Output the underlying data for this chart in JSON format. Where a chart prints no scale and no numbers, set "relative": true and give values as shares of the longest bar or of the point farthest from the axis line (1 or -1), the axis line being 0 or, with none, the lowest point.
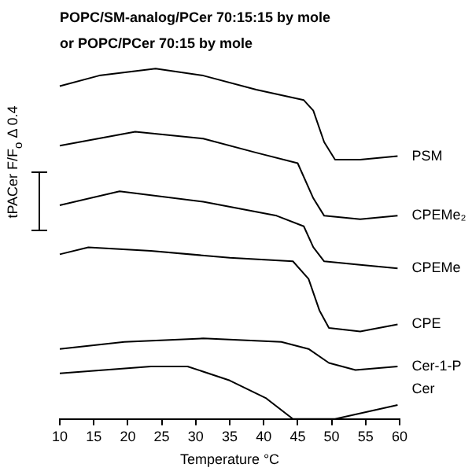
{
  "chart_data": {
    "type": "line",
    "title": "POPC/SM-analog/PCer 70:15:15 by mole",
    "subtitle": "or POPC/PCer 70:15 by mole",
    "xlabel": "Temperature °C",
    "ylabel": "tPACer F/F$_{o}$ Δ 0.4",
    "relative": true,
    "marker": "none",
    "line_style": "solid",
    "xlim": [
      10,
      60
    ],
    "xticks": [
      10,
      15,
      20,
      25,
      30,
      35,
      40,
      45,
      50,
      55,
      60
    ],
    "series": [
      {
        "name": "PSM",
        "color": "#000000",
        "x": [
          10,
          15.8,
          24.1,
          31.1,
          38.9,
          45.9,
          47.3,
          48.9,
          50.5,
          54.2,
          59.7
        ],
        "values": [
          0.95,
          0.98,
          1.0,
          0.98,
          0.94,
          0.91,
          0.88,
          0.79,
          0.74,
          0.74,
          0.75
        ]
      },
      {
        "name": "CPEMe₂",
        "color": "#000000",
        "x": [
          10,
          21.1,
          31.1,
          38.9,
          45,
          47.3,
          48.9,
          54.2,
          59.7
        ],
        "values": [
          0.78,
          0.82,
          0.8,
          0.76,
          0.73,
          0.63,
          0.58,
          0.57,
          0.58
        ]
      },
      {
        "name": "CPEMe",
        "color": "#000000",
        "x": [
          10,
          18.8,
          31.1,
          41.9,
          45.9,
          47.3,
          48.9,
          54.2,
          59.7
        ],
        "values": [
          0.61,
          0.65,
          0.62,
          0.58,
          0.55,
          0.49,
          0.45,
          0.44,
          0.43
        ]
      },
      {
        "name": "CPE",
        "color": "#000000",
        "x": [
          10,
          14.2,
          23.4,
          35,
          44.3,
          46.6,
          48.2,
          49.6,
          54.2,
          59.7
        ],
        "values": [
          0.47,
          0.49,
          0.48,
          0.46,
          0.45,
          0.4,
          0.31,
          0.26,
          0.25,
          0.27
        ]
      },
      {
        "name": "Cer-1-P",
        "color": "#000000",
        "x": [
          10,
          19.5,
          31.1,
          42.6,
          46.6,
          49.6,
          53.5,
          59.7
        ],
        "values": [
          0.2,
          0.22,
          0.23,
          0.22,
          0.2,
          0.16,
          0.14,
          0.15
        ]
      },
      {
        "name": "Cer",
        "color": "#000000",
        "x": [
          10,
          23.4,
          28.8,
          35,
          40.3,
          44.3,
          50.5,
          59.7
        ],
        "values": [
          0.13,
          0.15,
          0.15,
          0.11,
          0.06,
          0,
          0,
          0.04
        ]
      }
    ]
  }
}
